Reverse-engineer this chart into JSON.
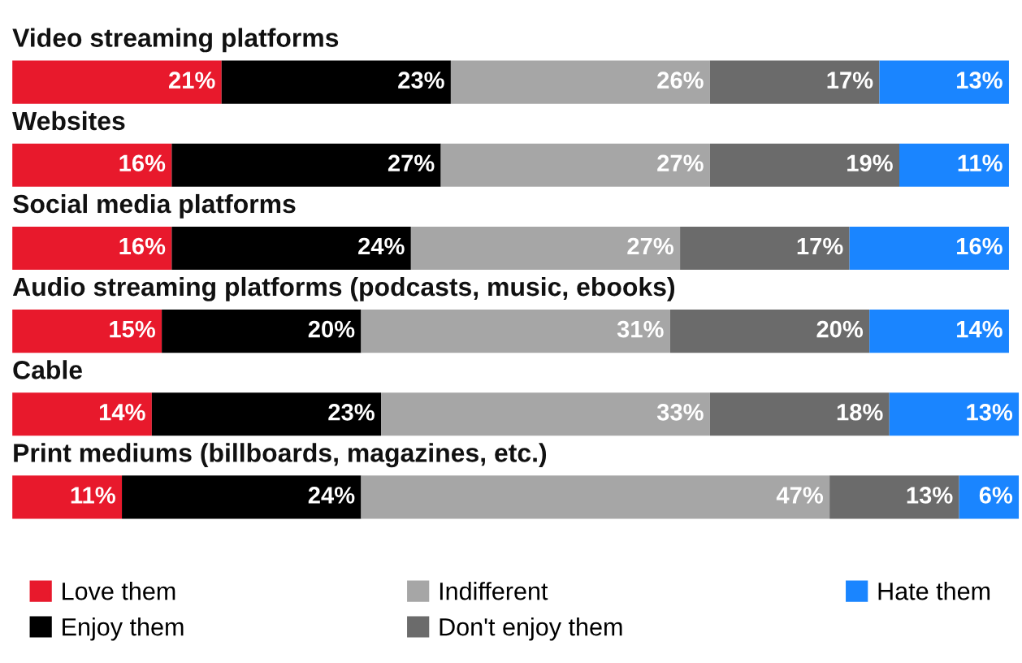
{
  "chart_data": {
    "type": "bar",
    "orientation": "horizontal",
    "stacked": true,
    "legend": "bottom",
    "tick_labels": false,
    "categories": [
      "Video streaming platforms",
      "Websites",
      "Social media platforms",
      "Audio streaming platforms (podcasts, music, ebooks)",
      "Cable",
      "Print mediums (billboards, magazines, etc.)"
    ],
    "series": [
      {
        "name": "Love them",
        "color": "#e8192c",
        "values": [
          21,
          16,
          16,
          15,
          14,
          11
        ],
        "value_labels": [
          "21%",
          "16%",
          "16%",
          "15%",
          "14%",
          "11%"
        ]
      },
      {
        "name": "Enjoy them",
        "color": "#000000",
        "values": [
          23,
          27,
          24,
          20,
          23,
          24
        ],
        "value_labels": [
          "23%",
          "27%",
          "24%",
          "20%",
          "23%",
          "24%"
        ]
      },
      {
        "name": "Indifferent",
        "color": "#a6a6a6",
        "values": [
          26,
          27,
          27,
          31,
          33,
          47
        ],
        "value_labels": [
          "26%",
          "27%",
          "27%",
          "31%",
          "33%",
          "47%"
        ]
      },
      {
        "name": "Don't enjoy them",
        "color": "#6b6b6b",
        "values": [
          17,
          19,
          17,
          20,
          18,
          13
        ],
        "value_labels": [
          "17%",
          "19%",
          "17%",
          "20%",
          "18%",
          "13%"
        ]
      },
      {
        "name": "Hate them",
        "color": "#1a85ff",
        "values": [
          13,
          11,
          16,
          14,
          13,
          6
        ],
        "value_labels": [
          "13%",
          "11%",
          "16%",
          "14%",
          "13%",
          "6%"
        ]
      }
    ]
  }
}
